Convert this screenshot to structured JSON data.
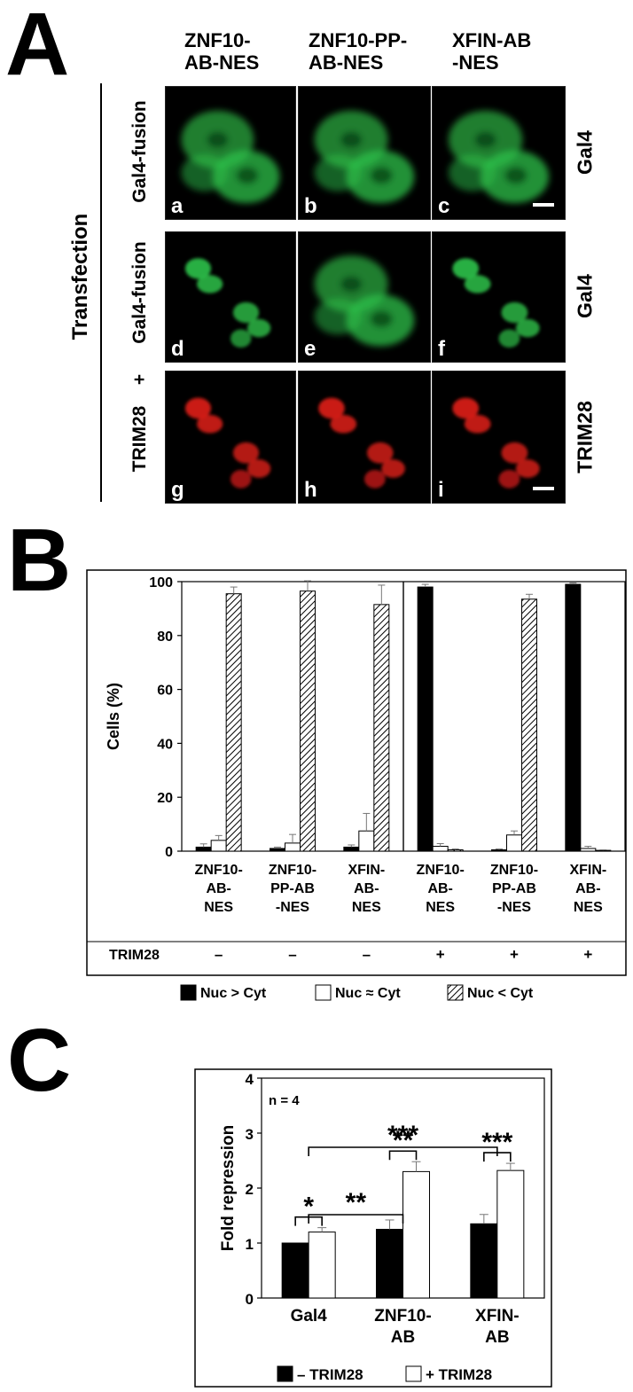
{
  "panel_a": {
    "letter": "A",
    "columns": [
      "ZNF10-\nAB-NES",
      "ZNF10-PP-\nAB-NES",
      "XFIN-AB\n-NES"
    ],
    "side_label": "Transfection",
    "row_labels": {
      "top": "Gal4-fusion",
      "mid": "Gal4-fusion",
      "plus": "+",
      "bottom": "TRIM28"
    },
    "right_labels": [
      "Gal4",
      "Gal4",
      "TRIM28"
    ],
    "images": [
      {
        "letter": "a",
        "color": "#2ec24a",
        "pattern": "cyto"
      },
      {
        "letter": "b",
        "color": "#2ec24a",
        "pattern": "cyto"
      },
      {
        "letter": "c",
        "color": "#2ec24a",
        "pattern": "cyto"
      },
      {
        "letter": "d",
        "color": "#2ec24a",
        "pattern": "nuc"
      },
      {
        "letter": "e",
        "color": "#2ec24a",
        "pattern": "cyto"
      },
      {
        "letter": "f",
        "color": "#2ec24a",
        "pattern": "nuc"
      },
      {
        "letter": "g",
        "color": "#e0201a",
        "pattern": "nuc"
      },
      {
        "letter": "h",
        "color": "#e0201a",
        "pattern": "nuc"
      },
      {
        "letter": "i",
        "color": "#e0201a",
        "pattern": "nuc"
      }
    ]
  },
  "chart_data": [
    {
      "panel": "B",
      "type": "bar",
      "ylabel": "Cells (%)",
      "ylim": [
        0,
        100
      ],
      "yticks": [
        0,
        20,
        40,
        60,
        80,
        100
      ],
      "categories": [
        "ZNF10-\nAB-\nNES",
        "ZNF10-\nPP-AB\n-NES",
        "XFIN-\nAB-\nNES",
        "ZNF10-\nAB-\nNES",
        "ZNF10-\nPP-AB\n-NES",
        "XFIN-\nAB-\nNES"
      ],
      "row_label": "TRIM28",
      "trim28": [
        "–",
        "–",
        "–",
        "+",
        "+",
        "+"
      ],
      "series": [
        {
          "name": "Nuc > Cyt",
          "fill": "black",
          "values": [
            1.5,
            1.0,
            1.5,
            98,
            0.5,
            99
          ],
          "errors": [
            1.2,
            0.5,
            0.8,
            1.0,
            0.3,
            0.5
          ]
        },
        {
          "name": "Nuc ≈ Cyt",
          "fill": "white",
          "values": [
            4,
            3,
            7.5,
            1.8,
            6,
            1.0
          ],
          "errors": [
            1.8,
            3.2,
            6.5,
            1.0,
            1.5,
            0.8
          ]
        },
        {
          "name": "Nuc < Cyt",
          "fill": "hatch",
          "values": [
            95.5,
            96.5,
            91.5,
            0.5,
            93.5,
            0.3
          ],
          "errors": [
            2.5,
            3.8,
            7.2,
            0.3,
            1.8,
            0.2
          ]
        }
      ],
      "divider_after": 3,
      "legend": "bottom"
    },
    {
      "panel": "C",
      "type": "bar",
      "ylabel": "Fold repression",
      "ylim": [
        0,
        4
      ],
      "yticks": [
        0,
        1,
        2,
        3,
        4
      ],
      "annotation": "n = 4",
      "categories": [
        "Gal4",
        "ZNF10-\nAB",
        "XFIN-\nAB"
      ],
      "series": [
        {
          "name": "– TRIM28",
          "fill": "black",
          "values": [
            1.0,
            1.25,
            1.35
          ],
          "errors": [
            0.0,
            0.17,
            0.17
          ]
        },
        {
          "name": "+ TRIM28",
          "fill": "white",
          "values": [
            1.2,
            2.3,
            2.32
          ],
          "errors": [
            0.08,
            0.18,
            0.13
          ]
        }
      ],
      "significance": [
        {
          "between": [
            0,
            0
          ],
          "label": "*"
        },
        {
          "between": [
            1,
            1
          ],
          "label": "**"
        },
        {
          "between": [
            2,
            2
          ],
          "label": "***"
        },
        {
          "from": 0,
          "to": 1,
          "label": "**"
        },
        {
          "from": 0,
          "to": 2,
          "label": "***"
        }
      ],
      "legend": "bottom"
    }
  ]
}
